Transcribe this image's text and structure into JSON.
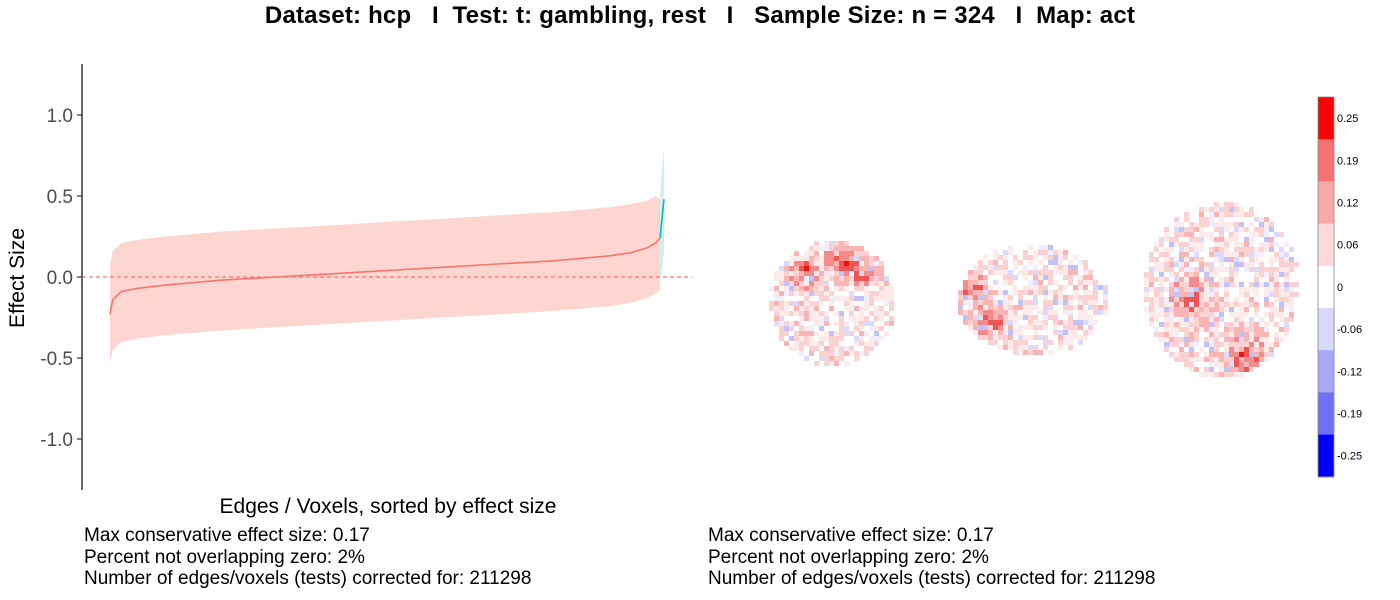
{
  "title": "Dataset: hcp   I  Test: t: gambling, rest   I   Sample Size: n = 324   I  Map: act",
  "chart_data": [
    {
      "type": "line",
      "xlabel": "Edges / Voxels, sorted by effect size",
      "ylabel": "Effect Size",
      "yticks": [
        "1.0",
        "0.5",
        "0.0",
        "-0.5",
        "-1.0"
      ],
      "ylim": [
        -1.3,
        1.3
      ],
      "reference_line": 0.0,
      "series": [
        {
          "color": "#F8766D",
          "band_color": "#FDD5D1",
          "x": [
            0,
            0.005,
            0.02,
            0.05,
            0.1,
            0.2,
            0.3,
            0.4,
            0.5,
            0.6,
            0.7,
            0.8,
            0.9,
            0.94,
            0.97,
            0.985,
            0.993
          ],
          "y": [
            -0.23,
            -0.14,
            -0.09,
            -0.07,
            -0.05,
            -0.02,
            0.0,
            0.02,
            0.04,
            0.06,
            0.08,
            0.1,
            0.13,
            0.15,
            0.18,
            0.21,
            0.24
          ],
          "lower": [
            -0.53,
            -0.45,
            -0.4,
            -0.38,
            -0.36,
            -0.33,
            -0.31,
            -0.29,
            -0.27,
            -0.25,
            -0.23,
            -0.21,
            -0.18,
            -0.16,
            -0.13,
            -0.1,
            -0.08
          ],
          "upper": [
            0.07,
            0.16,
            0.21,
            0.23,
            0.25,
            0.28,
            0.3,
            0.32,
            0.34,
            0.36,
            0.38,
            0.4,
            0.43,
            0.45,
            0.47,
            0.5,
            0.48
          ]
        },
        {
          "color": "#00BFC4",
          "band_color": "#CFF0EF",
          "x": [
            0.993,
            0.997,
            1.0
          ],
          "y": [
            0.24,
            0.38,
            0.48
          ],
          "lower": [
            -0.02,
            0.05,
            0.15
          ],
          "upper": [
            0.5,
            0.7,
            0.8
          ]
        }
      ]
    },
    {
      "type": "heatmap",
      "views": [
        "coronal",
        "sagittal",
        "axial"
      ],
      "colorbar": {
        "labels": [
          "0.25",
          "0.19",
          "0.12",
          "0.06",
          "0",
          "-0.06",
          "-0.12",
          "-0.19",
          "-0.25"
        ],
        "colors": [
          "#FF0000",
          "#F67272",
          "#F9A9A9",
          "#FCDADA",
          "#FFFFFF",
          "#D9D9FC",
          "#A9A9F6",
          "#7070F5",
          "#0000FF"
        ]
      }
    }
  ],
  "stats_left": [
    "Max conservative effect size: 0.17",
    "Percent not overlapping zero: 2%",
    "Number of edges/voxels (tests) corrected for: 211298"
  ],
  "stats_right": [
    "Max conservative effect size: 0.17",
    "Percent not overlapping zero: 2%",
    "Number of edges/voxels (tests) corrected for: 211298"
  ]
}
